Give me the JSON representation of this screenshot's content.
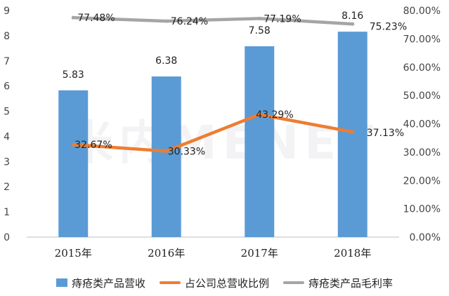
{
  "chart_data": {
    "type": "bar",
    "categories": [
      "2015年",
      "2016年",
      "2017年",
      "2018年"
    ],
    "left_axis": {
      "min": 0,
      "max": 9,
      "ticks": [
        "0",
        "1",
        "2",
        "3",
        "4",
        "5",
        "6",
        "7",
        "8",
        "9"
      ]
    },
    "right_axis": {
      "min": 0,
      "max": 80,
      "ticks": [
        "0.00%",
        "10.00%",
        "20.00%",
        "30.00%",
        "40.00%",
        "50.00%",
        "60.00%",
        "70.00%",
        "80.00%"
      ]
    },
    "series": [
      {
        "name": "痔疮类产品营收",
        "type": "bar",
        "axis": "left",
        "values": [
          5.83,
          6.38,
          7.58,
          8.16
        ],
        "labels": [
          "5.83",
          "6.38",
          "7.58",
          "8.16"
        ]
      },
      {
        "name": "占公司总营收比例",
        "type": "line",
        "axis": "right",
        "values": [
          32.67,
          30.33,
          43.29,
          37.13
        ],
        "labels": [
          "32.67%",
          "30.33%",
          "43.29%",
          "37.13%"
        ]
      },
      {
        "name": "痔疮类产品毛利率",
        "type": "line",
        "axis": "right",
        "values": [
          77.48,
          76.24,
          77.19,
          75.23
        ],
        "labels": [
          "77.48%",
          "76.24%",
          "77.19%",
          "75.23%"
        ]
      }
    ],
    "colors": {
      "bar": "#5b9bd5",
      "ratio_line": "#ed7d31",
      "margin_line": "#a5a5a5"
    },
    "grid": false,
    "legend_position": "bottom"
  },
  "watermark": "米内MENET"
}
